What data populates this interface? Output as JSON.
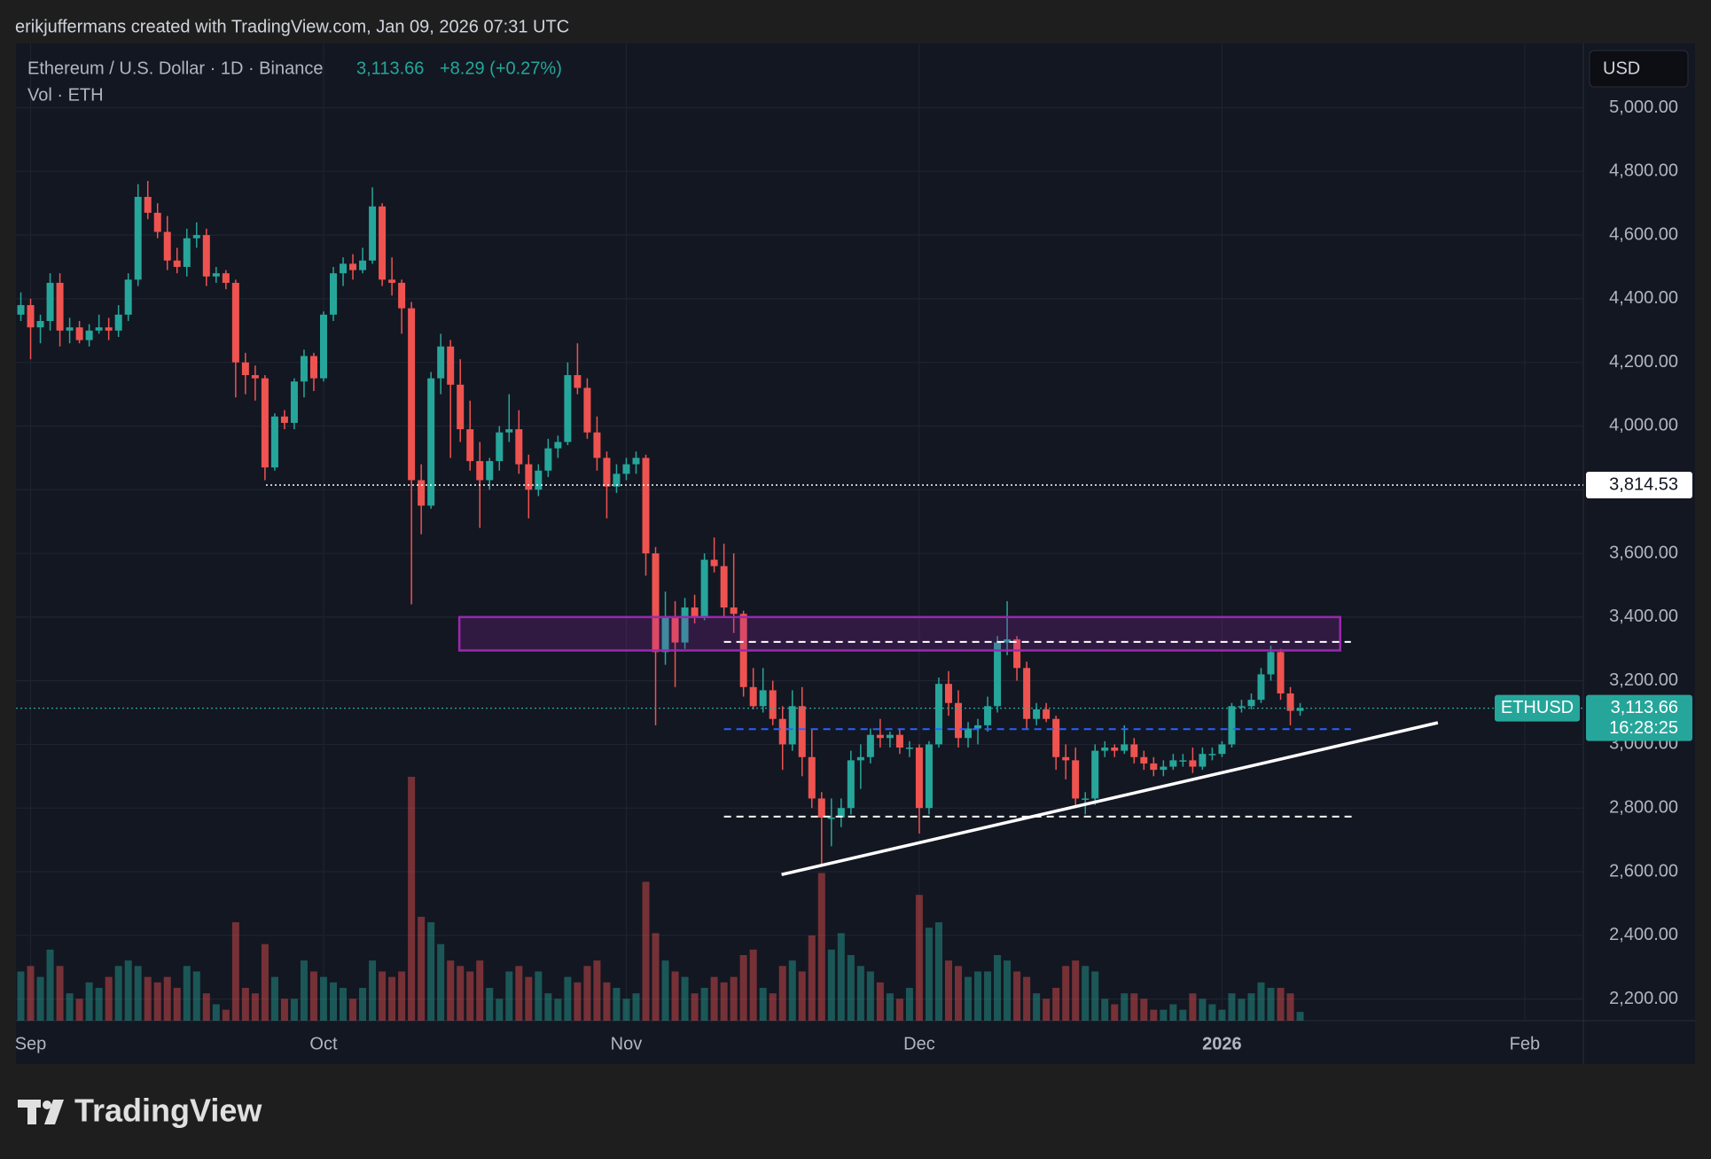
{
  "header": "erikjuffermans created with TradingView.com, Jan 09, 2026 07:31 UTC",
  "logo": "TradingView",
  "chart_data": {
    "type": "candlestick",
    "title": "Ethereum / U.S. Dollar · 1D · Binance",
    "last_price": 3113.66,
    "last_price_label": "3,113.66",
    "change_label": "+8.29 (+0.27%)",
    "volume_label": "Vol · ETH",
    "currency": "USD",
    "symbol": "ETHUSD",
    "countdown": "16:28:25",
    "colors": {
      "up": "#26a69a",
      "down": "#ef5350"
    },
    "grid": true,
    "xlim": [
      -0.5,
      160
    ],
    "xticks": [
      {
        "value": 1,
        "label": "Sep"
      },
      {
        "value": 31,
        "label": "Oct"
      },
      {
        "value": 62,
        "label": "Nov"
      },
      {
        "value": 92,
        "label": "Dec"
      },
      {
        "value": 123,
        "label": "2026"
      },
      {
        "value": 154,
        "label": "Feb"
      }
    ],
    "ylim": [
      2132,
      5202
    ],
    "yticks": [
      {
        "value": 2200,
        "label": "2,200.00"
      },
      {
        "value": 2400,
        "label": "2,400.00"
      },
      {
        "value": 2600,
        "label": "2,600.00"
      },
      {
        "value": 2800,
        "label": "2,800.00"
      },
      {
        "value": 3000,
        "label": "3,000.00"
      },
      {
        "value": 3200,
        "label": "3,200.00"
      },
      {
        "value": 3400,
        "label": "3,400.00"
      },
      {
        "value": 3600,
        "label": "3,600.00"
      },
      {
        "value": 3800,
        "label": "3,800.00"
      },
      {
        "value": 4000,
        "label": "4,000.00"
      },
      {
        "value": 4200,
        "label": "4,200.00"
      },
      {
        "value": 4400,
        "label": "4,400.00"
      },
      {
        "value": 4600,
        "label": "4,600.00"
      },
      {
        "value": 4800,
        "label": "4,800.00"
      },
      {
        "value": 5000,
        "label": "5,000.00"
      }
    ],
    "ohlc": [
      [
        4350,
        4420,
        4330,
        4380
      ],
      [
        4380,
        4400,
        4210,
        4310
      ],
      [
        4310,
        4350,
        4260,
        4330
      ],
      [
        4330,
        4480,
        4300,
        4450
      ],
      [
        4450,
        4480,
        4250,
        4300
      ],
      [
        4300,
        4340,
        4260,
        4310
      ],
      [
        4310,
        4330,
        4260,
        4270
      ],
      [
        4270,
        4320,
        4250,
        4300
      ],
      [
        4300,
        4350,
        4290,
        4310
      ],
      [
        4310,
        4340,
        4270,
        4300
      ],
      [
        4300,
        4380,
        4280,
        4350
      ],
      [
        4350,
        4480,
        4330,
        4460
      ],
      [
        4460,
        4760,
        4440,
        4720
      ],
      [
        4720,
        4770,
        4650,
        4670
      ],
      [
        4670,
        4700,
        4590,
        4610
      ],
      [
        4610,
        4660,
        4490,
        4520
      ],
      [
        4520,
        4560,
        4480,
        4500
      ],
      [
        4500,
        4620,
        4470,
        4590
      ],
      [
        4590,
        4640,
        4560,
        4600
      ],
      [
        4600,
        4620,
        4440,
        4470
      ],
      [
        4470,
        4500,
        4450,
        4480
      ],
      [
        4480,
        4490,
        4430,
        4450
      ],
      [
        4450,
        4460,
        4090,
        4200
      ],
      [
        4200,
        4230,
        4100,
        4160
      ],
      [
        4160,
        4190,
        4080,
        4150
      ],
      [
        4150,
        4160,
        3830,
        3870
      ],
      [
        3870,
        4040,
        3860,
        4030
      ],
      [
        4030,
        4050,
        3990,
        4010
      ],
      [
        4010,
        4150,
        3990,
        4140
      ],
      [
        4140,
        4240,
        4090,
        4220
      ],
      [
        4220,
        4230,
        4110,
        4150
      ],
      [
        4150,
        4360,
        4140,
        4350
      ],
      [
        4350,
        4500,
        4330,
        4480
      ],
      [
        4480,
        4530,
        4440,
        4510
      ],
      [
        4510,
        4540,
        4460,
        4490
      ],
      [
        4490,
        4560,
        4480,
        4520
      ],
      [
        4520,
        4750,
        4510,
        4690
      ],
      [
        4690,
        4700,
        4440,
        4460
      ],
      [
        4460,
        4530,
        4410,
        4450
      ],
      [
        4450,
        4460,
        4290,
        4370
      ],
      [
        4370,
        4390,
        3440,
        3830
      ],
      [
        3830,
        3880,
        3660,
        3750
      ],
      [
        3750,
        4170,
        3740,
        4150
      ],
      [
        4150,
        4290,
        4100,
        4250
      ],
      [
        4250,
        4270,
        3900,
        4130
      ],
      [
        4130,
        4210,
        3950,
        3990
      ],
      [
        3990,
        4080,
        3860,
        3890
      ],
      [
        3890,
        3950,
        3680,
        3830
      ],
      [
        3830,
        3900,
        3800,
        3890
      ],
      [
        3890,
        4000,
        3860,
        3980
      ],
      [
        3980,
        4100,
        3950,
        3990
      ],
      [
        3990,
        4050,
        3850,
        3880
      ],
      [
        3880,
        3910,
        3710,
        3800
      ],
      [
        3800,
        3880,
        3780,
        3860
      ],
      [
        3860,
        3960,
        3840,
        3930
      ],
      [
        3930,
        3970,
        3900,
        3950
      ],
      [
        3950,
        4200,
        3940,
        4160
      ],
      [
        4160,
        4260,
        4100,
        4120
      ],
      [
        4120,
        4150,
        3960,
        3980
      ],
      [
        3980,
        4030,
        3860,
        3900
      ],
      [
        3900,
        3920,
        3710,
        3810
      ],
      [
        3810,
        3880,
        3790,
        3850
      ],
      [
        3850,
        3900,
        3830,
        3880
      ],
      [
        3880,
        3920,
        3850,
        3900
      ],
      [
        3900,
        3910,
        3530,
        3600
      ],
      [
        3600,
        3620,
        3060,
        3290
      ],
      [
        3290,
        3480,
        3250,
        3400
      ],
      [
        3400,
        3450,
        3180,
        3320
      ],
      [
        3320,
        3460,
        3300,
        3430
      ],
      [
        3430,
        3470,
        3380,
        3400
      ],
      [
        3400,
        3600,
        3390,
        3580
      ],
      [
        3580,
        3650,
        3540,
        3560
      ],
      [
        3560,
        3630,
        3400,
        3430
      ],
      [
        3430,
        3600,
        3350,
        3410
      ],
      [
        3410,
        3420,
        3150,
        3180
      ],
      [
        3180,
        3240,
        3110,
        3120
      ],
      [
        3120,
        3240,
        3100,
        3170
      ],
      [
        3170,
        3200,
        3060,
        3080
      ],
      [
        3080,
        3120,
        2920,
        3000
      ],
      [
        3000,
        3170,
        2980,
        3120
      ],
      [
        3120,
        3180,
        2900,
        2960
      ],
      [
        2960,
        3050,
        2800,
        2830
      ],
      [
        2830,
        2850,
        2620,
        2770
      ],
      [
        2770,
        2830,
        2680,
        2770
      ],
      [
        2770,
        2830,
        2740,
        2800
      ],
      [
        2800,
        2980,
        2780,
        2950
      ],
      [
        2950,
        3000,
        2860,
        2960
      ],
      [
        2960,
        3050,
        2940,
        3030
      ],
      [
        3030,
        3080,
        2990,
        3020
      ],
      [
        3020,
        3040,
        2990,
        3030
      ],
      [
        3030,
        3050,
        2970,
        2990
      ],
      [
        2990,
        3010,
        2960,
        2990
      ],
      [
        2990,
        3000,
        2720,
        2800
      ],
      [
        2800,
        3010,
        2780,
        3000
      ],
      [
        3000,
        3210,
        2990,
        3190
      ],
      [
        3190,
        3230,
        3090,
        3130
      ],
      [
        3130,
        3170,
        2990,
        3020
      ],
      [
        3020,
        3070,
        2990,
        3050
      ],
      [
        3050,
        3080,
        3000,
        3060
      ],
      [
        3060,
        3150,
        3040,
        3120
      ],
      [
        3120,
        3340,
        3100,
        3320
      ],
      [
        3320,
        3450,
        3280,
        3330
      ],
      [
        3330,
        3340,
        3200,
        3240
      ],
      [
        3240,
        3260,
        3050,
        3080
      ],
      [
        3080,
        3130,
        3060,
        3110
      ],
      [
        3110,
        3130,
        3070,
        3080
      ],
      [
        3080,
        3090,
        2920,
        2960
      ],
      [
        2960,
        3000,
        2890,
        2950
      ],
      [
        2950,
        2990,
        2800,
        2830
      ],
      [
        2830,
        2850,
        2780,
        2830
      ],
      [
        2830,
        3000,
        2810,
        2980
      ],
      [
        2980,
        3010,
        2960,
        2990
      ],
      [
        2990,
        3000,
        2960,
        2980
      ],
      [
        2980,
        3060,
        2970,
        3000
      ],
      [
        3000,
        3020,
        2940,
        2960
      ],
      [
        2960,
        2980,
        2920,
        2940
      ],
      [
        2940,
        2960,
        2900,
        2920
      ],
      [
        2920,
        2950,
        2900,
        2930
      ],
      [
        2930,
        2970,
        2920,
        2950
      ],
      [
        2950,
        2970,
        2930,
        2950
      ],
      [
        2950,
        2990,
        2910,
        2930
      ],
      [
        2930,
        2990,
        2920,
        2970
      ],
      [
        2970,
        2990,
        2950,
        2970
      ],
      [
        2970,
        3010,
        2960,
        3000
      ],
      [
        3000,
        3130,
        2990,
        3120
      ],
      [
        3120,
        3140,
        3100,
        3120
      ],
      [
        3120,
        3160,
        3110,
        3140
      ],
      [
        3140,
        3240,
        3130,
        3220
      ],
      [
        3220,
        3310,
        3200,
        3290
      ],
      [
        3290,
        3300,
        3140,
        3160
      ],
      [
        3160,
        3180,
        3060,
        3105.37
      ],
      [
        3105.37,
        3130,
        3090,
        3113.66
      ]
    ],
    "volume": [
      180000,
      200000,
      160000,
      260000,
      200000,
      100000,
      80000,
      140000,
      120000,
      160000,
      200000,
      220000,
      200000,
      160000,
      140000,
      160000,
      120000,
      200000,
      180000,
      100000,
      60000,
      40000,
      360000,
      120000,
      100000,
      280000,
      160000,
      80000,
      80000,
      220000,
      180000,
      160000,
      140000,
      120000,
      80000,
      120000,
      220000,
      180000,
      160000,
      180000,
      892000,
      380000,
      360000,
      280000,
      220000,
      200000,
      180000,
      220000,
      120000,
      80000,
      180000,
      200000,
      160000,
      180000,
      100000,
      80000,
      160000,
      140000,
      200000,
      220000,
      140000,
      120000,
      80000,
      100000,
      508000,
      320000,
      220000,
      180000,
      160000,
      100000,
      120000,
      160000,
      140000,
      160000,
      240000,
      260000,
      120000,
      100000,
      200000,
      220000,
      180000,
      312000,
      540000,
      260000,
      320000,
      240000,
      200000,
      180000,
      140000,
      100000,
      80000,
      120000,
      460000,
      340000,
      360000,
      220000,
      200000,
      160000,
      180000,
      180000,
      240000,
      220000,
      180000,
      160000,
      100000,
      80000,
      120000,
      200000,
      220000,
      200000,
      180000,
      80000,
      60000,
      100000,
      100000,
      80000,
      40000,
      40000,
      60000,
      40000,
      100000,
      80000,
      60000,
      40000,
      100000,
      80000,
      100000,
      140000,
      120000,
      120000,
      100000,
      32000
    ],
    "drawings": {
      "zone": {
        "x": [
          44.9,
          135.1
        ],
        "y": [
          3295,
          3400
        ],
        "color": "#9c27b0"
      },
      "levels": [
        {
          "value": 3322,
          "x": [
            72,
            136.2
          ],
          "color": "#ffffff"
        },
        {
          "value": 3048,
          "x": [
            72,
            136.2
          ],
          "color": "#2962ff"
        },
        {
          "value": 2773,
          "x": [
            72,
            136.7
          ],
          "color": "#ffffff"
        }
      ],
      "trendline": {
        "x": [
          77.9,
          145.1
        ],
        "y": [
          2591,
          3068
        ],
        "color": "#ffffff"
      },
      "price_line": {
        "value": 3814.53,
        "label": "3,814.53",
        "x_start": 25.1
      }
    }
  }
}
